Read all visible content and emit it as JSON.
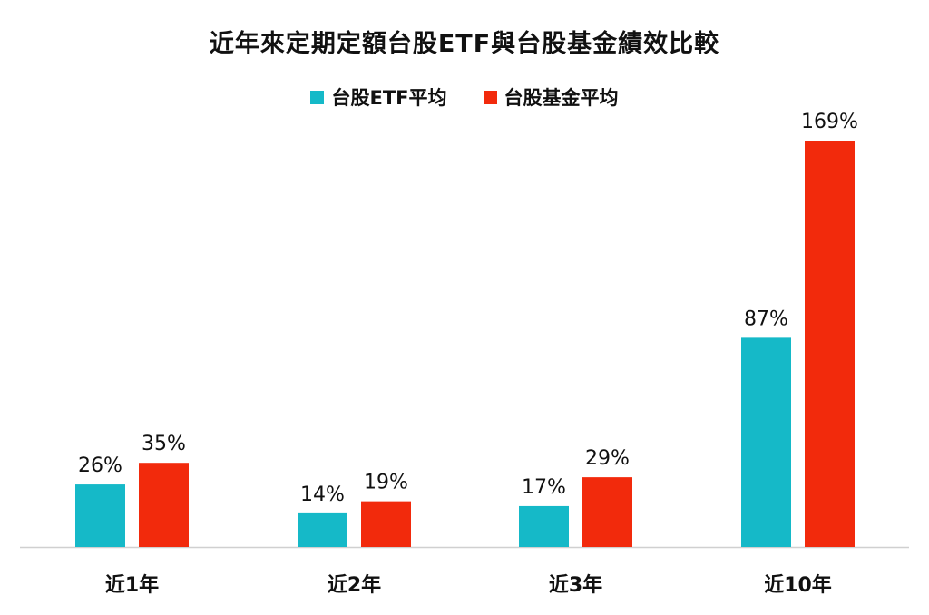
{
  "chart_data": {
    "type": "bar",
    "title": "近年來定期定額台股ETF與台股基金績效比較",
    "categories": [
      "近1年",
      "近2年",
      "近3年",
      "近10年"
    ],
    "series": [
      {
        "name": "台股ETF平均",
        "color": "#15b9c8",
        "values": [
          26,
          14,
          17,
          87
        ],
        "labels": [
          "26%",
          "14%",
          "17%",
          "87%"
        ]
      },
      {
        "name": "台股基金平均",
        "color": "#f22a0c",
        "values": [
          35,
          19,
          29,
          169
        ],
        "labels": [
          "35%",
          "19%",
          "29%",
          "169%"
        ]
      }
    ],
    "unit": "%",
    "ylim": [
      0,
      169
    ],
    "grid": false,
    "legend_position": "top-center"
  }
}
